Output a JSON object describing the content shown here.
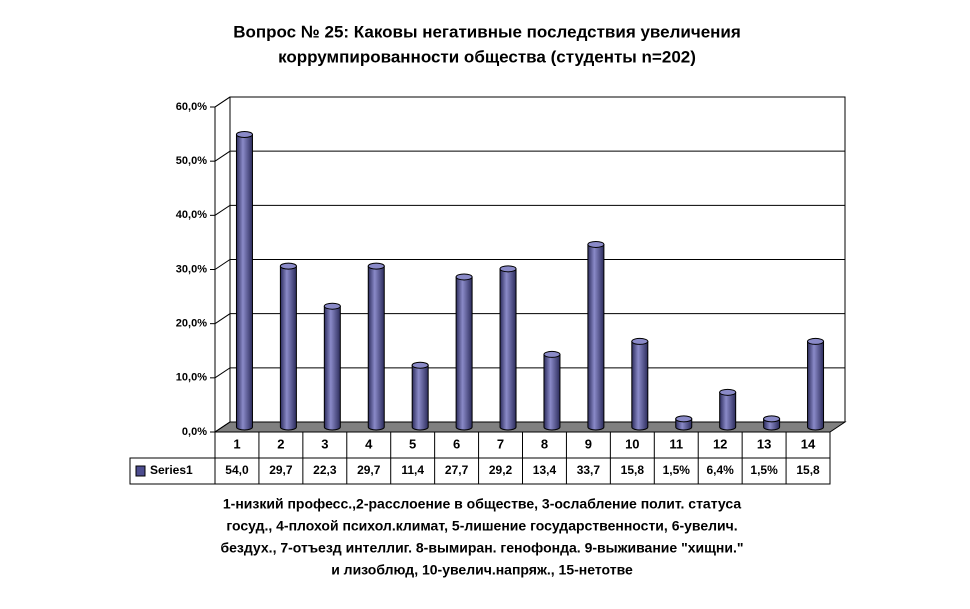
{
  "chart_data": {
    "type": "bar",
    "title": [
      "Вопрос № 25: Каковы негативные последствия увеличения",
      "коррумпированности общества (студенты n=202)"
    ],
    "categories": [
      "1",
      "2",
      "3",
      "4",
      "5",
      "6",
      "7",
      "8",
      "9",
      "10",
      "11",
      "12",
      "13",
      "14"
    ],
    "series": [
      {
        "name": "Series1",
        "color": "#4d4d8f",
        "values": [
          54.0,
          29.7,
          22.3,
          29.7,
          11.4,
          27.7,
          29.2,
          13.4,
          33.7,
          15.8,
          1.5,
          6.4,
          1.5,
          15.8
        ],
        "value_labels": [
          "54,0",
          "29,7",
          "22,3",
          "29,7",
          "11,4",
          "27,7",
          "29,2",
          "13,4",
          "33,7",
          "15,8",
          "1,5%",
          "6,4%",
          "1,5%",
          "15,8"
        ]
      }
    ],
    "ylim": [
      0,
      60
    ],
    "yticks": [
      {
        "value": 0,
        "label": "0,0%"
      },
      {
        "value": 10,
        "label": "10,0%"
      },
      {
        "value": 20,
        "label": "20,0%"
      },
      {
        "value": 30,
        "label": "30,0%"
      },
      {
        "value": 40,
        "label": "40,0%"
      },
      {
        "value": 50,
        "label": "50,0%"
      },
      {
        "value": 60,
        "label": "60,0%"
      }
    ],
    "grid": true,
    "note": [
      "1-низкий  професс.,2-расслоение в обществе, 3-ослабление полит. статуса",
      "госуд., 4-плохой психол.климат, 5-лишение государственности, 6-увелич.",
      "бездух., 7-отъезд интеллиг. 8-вымиран. генофонда. 9-выживание \"хищни.\"",
      "и лизоблюд, 10-увелич.напряж., 15-нетотве"
    ]
  }
}
